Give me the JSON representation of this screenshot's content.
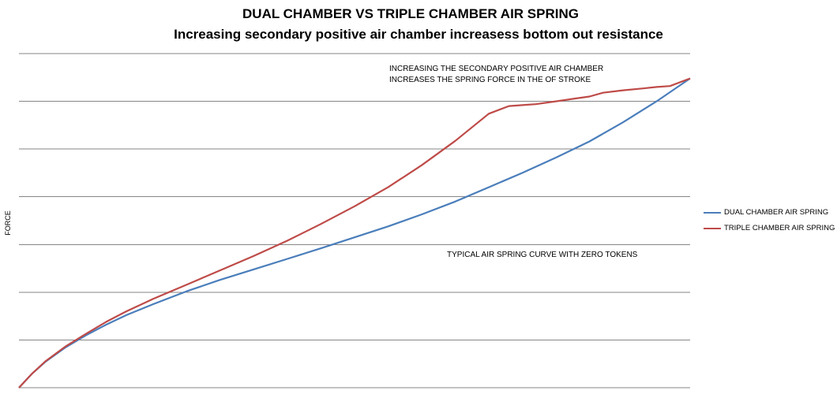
{
  "chart_data": {
    "type": "line",
    "title": "DUAL CHAMBER VS TRIPLE CHAMBER AIR SPRING",
    "subtitle": "Increasing secondary positive air chamber increasess bottom out resistance",
    "xlabel": "",
    "ylabel": "FORCE",
    "xlim": [
      0,
      100
    ],
    "ylim": [
      0,
      7
    ],
    "grid": true,
    "legend_position": "right",
    "annotations": [
      "INCREASING THE SECONDARY POSITIVE AIR CHAMBER",
      "INCREASES THE SPRING FORCE  IN THE  OF STROKE",
      "TYPICAL AIR SPRING CURVE WITH ZERO TOKENS"
    ],
    "series": [
      {
        "name": "DUAL CHAMBER AIR SPRING",
        "color": "#4a7ebb",
        "x": [
          0,
          2,
          4,
          7,
          10,
          13,
          16,
          20,
          25,
          30,
          35,
          40,
          45,
          50,
          55,
          60,
          65,
          70,
          75,
          80,
          85,
          90,
          95,
          100
        ],
        "y": [
          0,
          0.3,
          0.55,
          0.85,
          1.1,
          1.32,
          1.52,
          1.75,
          2.02,
          2.26,
          2.48,
          2.7,
          2.92,
          3.15,
          3.38,
          3.63,
          3.9,
          4.2,
          4.5,
          4.82,
          5.16,
          5.56,
          6.0,
          6.48
        ]
      },
      {
        "name": "TRIPLE CHAMBER AIR SPRING",
        "color": "#be4b48",
        "x": [
          0,
          2,
          4,
          7,
          10,
          13,
          16,
          20,
          25,
          30,
          35,
          40,
          45,
          50,
          55,
          60,
          65,
          70,
          73,
          75,
          77,
          80,
          83,
          85,
          87,
          90,
          93,
          95,
          97,
          100
        ],
        "y": [
          0,
          0.3,
          0.56,
          0.87,
          1.13,
          1.38,
          1.6,
          1.86,
          2.16,
          2.46,
          2.76,
          3.08,
          3.43,
          3.8,
          4.2,
          4.66,
          5.17,
          5.74,
          5.9,
          5.92,
          5.94,
          6.0,
          6.06,
          6.1,
          6.18,
          6.23,
          6.27,
          6.3,
          6.32,
          6.48
        ]
      }
    ]
  }
}
